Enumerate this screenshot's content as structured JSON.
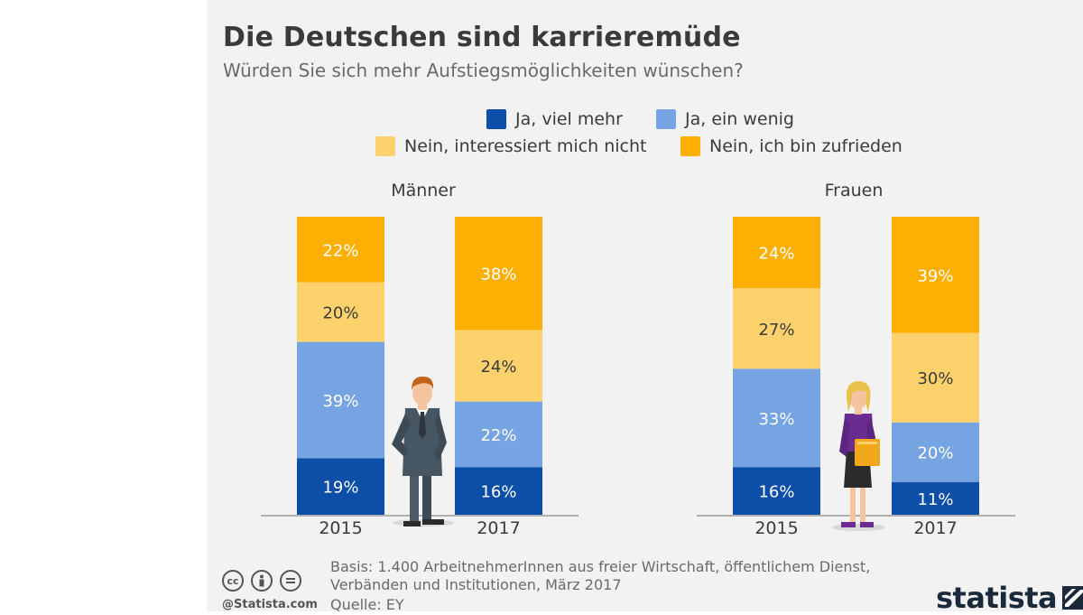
{
  "title": "Die Deutschen sind karrieremüde",
  "subtitle": "Würden Sie sich mehr Aufstiegsmöglichkeiten wünschen?",
  "colors": {
    "viel_mehr": "#0d4fa8",
    "ein_wenig": "#76a4e2",
    "nicht": "#fdd16b",
    "zufrieden": "#fdaf03"
  },
  "legend": [
    {
      "label": "Ja, viel mehr",
      "color": "#0d4fa8"
    },
    {
      "label": "Ja, ein wenig",
      "color": "#76a4e2"
    },
    {
      "label": "Nein, interessiert mich nicht",
      "color": "#fdd16b"
    },
    {
      "label": "Nein, ich bin zufrieden",
      "color": "#fdaf03"
    }
  ],
  "chart_data": [
    {
      "type": "bar",
      "stacked": true,
      "title": "Männer",
      "categories": [
        "2015",
        "2017"
      ],
      "series": [
        {
          "name": "Ja, viel mehr",
          "values": [
            19,
            16
          ]
        },
        {
          "name": "Ja, ein wenig",
          "values": [
            39,
            22
          ]
        },
        {
          "name": "Nein, interessiert mich nicht",
          "values": [
            20,
            24
          ]
        },
        {
          "name": "Nein, ich bin zufrieden",
          "values": [
            22,
            38
          ]
        }
      ],
      "data_labels": [
        [
          "19%",
          "39%",
          "20%",
          "22%"
        ],
        [
          "16%",
          "22%",
          "24%",
          "38%"
        ]
      ],
      "ylim": [
        0,
        100
      ]
    },
    {
      "type": "bar",
      "stacked": true,
      "title": "Frauen",
      "categories": [
        "2015",
        "2017"
      ],
      "series": [
        {
          "name": "Ja, viel mehr",
          "values": [
            16,
            11
          ]
        },
        {
          "name": "Ja, ein wenig",
          "values": [
            33,
            20
          ]
        },
        {
          "name": "Nein, interessiert mich nicht",
          "values": [
            27,
            30
          ]
        },
        {
          "name": "Nein, ich bin zufrieden",
          "values": [
            24,
            39
          ]
        }
      ],
      "data_labels": [
        [
          "16%",
          "33%",
          "27%",
          "24%"
        ],
        [
          "11%",
          "20%",
          "30%",
          "39%"
        ]
      ],
      "ylim": [
        0,
        100
      ]
    }
  ],
  "footnote": {
    "basis_line1": "Basis: 1.400 ArbeitnehmerInnen aus freier Wirtschaft, öffentlichem Dienst,",
    "basis_line2": "Verbänden und Institutionen, März 2017",
    "source": "Quelle: EY"
  },
  "credit": "@Statista.com",
  "brand": "statista"
}
